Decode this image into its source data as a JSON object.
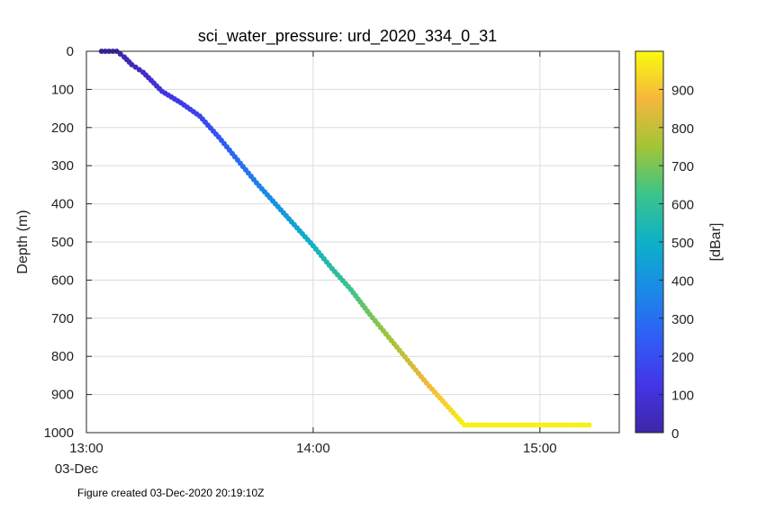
{
  "chart_data": {
    "type": "scatter",
    "title": "sci_water_pressure: urd_2020_334_0_31",
    "xlabel": "",
    "ylabel": "Depth (m)",
    "x_tick_labels": [
      "13:00",
      "14:00",
      "15:00"
    ],
    "x_date_label": "03-Dec",
    "xlim": [
      "13:00",
      "15:21"
    ],
    "ylim": [
      0,
      1000
    ],
    "y_reversed": true,
    "y_ticks": [
      0,
      100,
      200,
      300,
      400,
      500,
      600,
      700,
      800,
      900,
      1000
    ],
    "grid": true,
    "colorbar": {
      "label": "[dBar]",
      "range": [
        0,
        1000
      ],
      "ticks": [
        0,
        100,
        200,
        300,
        400,
        500,
        600,
        700,
        800,
        900
      ],
      "colormap": "parula"
    },
    "series": [
      {
        "x": [
          "13:04",
          "13:08",
          "13:10",
          "13:12",
          "13:15",
          "13:20",
          "13:25",
          "13:30",
          "13:35",
          "13:40",
          "13:45",
          "13:50",
          "13:55",
          "14:00",
          "14:05",
          "14:10",
          "14:15",
          "14:20",
          "14:25",
          "14:30",
          "14:35",
          "14:40",
          "14:45",
          "14:50",
          "14:55",
          "15:00",
          "15:05",
          "15:10",
          "15:13"
        ],
        "y": [
          0,
          0,
          15,
          35,
          55,
          105,
          135,
          170,
          225,
          285,
          345,
          400,
          455,
          510,
          570,
          625,
          690,
          750,
          810,
          870,
          925,
          980,
          980,
          980,
          980,
          980,
          980,
          980,
          980
        ]
      }
    ]
  },
  "footer_text": "Figure created 03-Dec-2020 20:19:10Z",
  "colors": {
    "background": "#ffffff",
    "axes": "#262626",
    "grid": "#dcdcdc"
  }
}
